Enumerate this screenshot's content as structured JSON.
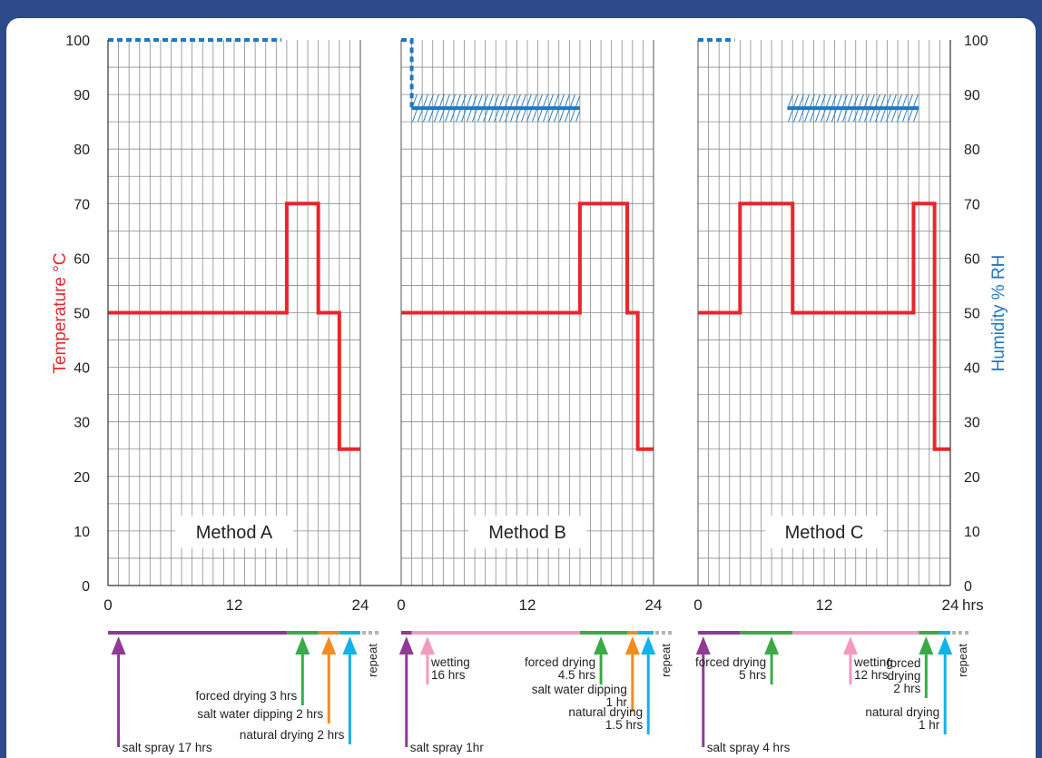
{
  "chart_data": {
    "type": "line",
    "y_left_label": "Temperature °C",
    "y_right_label": "Humidity % RH",
    "y_ticks": [
      0,
      10,
      20,
      30,
      40,
      50,
      60,
      70,
      80,
      90,
      100
    ],
    "ylim": [
      0,
      100
    ],
    "x_unit": "hrs",
    "x_ticks": [
      0,
      12,
      24
    ],
    "grid": true,
    "colors": {
      "temperature": "#e8262b",
      "humidity": "#1f78c1",
      "salt_spray": "#8e3a96",
      "wetting": "#f49ac1",
      "forced_drying": "#3aaa49",
      "salt_water_dipping": "#f28c1e",
      "natural_drying": "#11b3e8",
      "repeat": "#b3b3b3"
    },
    "panels": [
      {
        "title": "Method A",
        "temperature": [
          [
            0,
            50
          ],
          [
            17,
            50
          ],
          [
            17,
            70
          ],
          [
            20,
            70
          ],
          [
            20,
            50
          ],
          [
            22,
            50
          ],
          [
            22,
            25
          ],
          [
            24,
            25
          ]
        ],
        "humidity_dotted": [
          [
            0,
            100
          ],
          [
            16.5,
            100
          ]
        ],
        "humidity_hatched": null,
        "timeline": [
          {
            "phase": "salt_spray",
            "start": 0,
            "end": 17
          },
          {
            "phase": "forced_drying",
            "start": 17,
            "end": 20
          },
          {
            "phase": "salt_water_dipping",
            "start": 20,
            "end": 22
          },
          {
            "phase": "natural_drying",
            "start": 22,
            "end": 24
          }
        ],
        "annotations": [
          {
            "label": [
              "salt spray 17 hrs"
            ],
            "phase": "salt_spray",
            "x": 1
          },
          {
            "label": [
              "forced drying 3 hrs"
            ],
            "phase": "forced_drying",
            "x": 18.5
          },
          {
            "label": [
              "salt water dipping 2 hrs"
            ],
            "phase": "salt_water_dipping",
            "x": 21
          },
          {
            "label": [
              "natural drying 2 hrs"
            ],
            "phase": "natural_drying",
            "x": 23
          }
        ]
      },
      {
        "title": "Method B",
        "temperature": [
          [
            0,
            50
          ],
          [
            17,
            50
          ],
          [
            17,
            70
          ],
          [
            21.5,
            70
          ],
          [
            21.5,
            50
          ],
          [
            22.5,
            50
          ],
          [
            22.5,
            25
          ],
          [
            24,
            25
          ]
        ],
        "humidity_dotted": [
          [
            0,
            100
          ],
          [
            1,
            100
          ],
          [
            1,
            87.5
          ],
          [
            1.5,
            87.5
          ]
        ],
        "humidity_hatched": {
          "start": 1,
          "end": 17,
          "value": 87.5
        },
        "timeline": [
          {
            "phase": "salt_spray",
            "start": 0,
            "end": 1
          },
          {
            "phase": "wetting",
            "start": 1,
            "end": 17
          },
          {
            "phase": "forced_drying",
            "start": 17,
            "end": 21.5
          },
          {
            "phase": "salt_water_dipping",
            "start": 21.5,
            "end": 22.5
          },
          {
            "phase": "natural_drying",
            "start": 22.5,
            "end": 24
          }
        ],
        "annotations": [
          {
            "label": [
              "salt spray 1hr"
            ],
            "phase": "salt_spray",
            "x": 0.5
          },
          {
            "label": [
              "wetting",
              "16 hrs"
            ],
            "phase": "wetting",
            "x": 2.5
          },
          {
            "label": [
              "forced drying",
              "4.5 hrs"
            ],
            "phase": "forced_drying",
            "x": 19
          },
          {
            "label": [
              "salt water dipping",
              "1 hr"
            ],
            "phase": "salt_water_dipping",
            "x": 22
          },
          {
            "label": [
              "natural drying",
              "1.5 hrs"
            ],
            "phase": "natural_drying",
            "x": 23.5
          }
        ]
      },
      {
        "title": "Method C",
        "temperature": [
          [
            0,
            50
          ],
          [
            4,
            50
          ],
          [
            4,
            70
          ],
          [
            9,
            70
          ],
          [
            9,
            50
          ],
          [
            20.5,
            50
          ],
          [
            20.5,
            70
          ],
          [
            22.5,
            70
          ],
          [
            22.5,
            25
          ],
          [
            24,
            25
          ]
        ],
        "humidity_dotted": [
          [
            0,
            100
          ],
          [
            3.5,
            100
          ]
        ],
        "humidity_hatched": {
          "start": 8.5,
          "end": 21,
          "value": 87.5
        },
        "timeline": [
          {
            "phase": "salt_spray",
            "start": 0,
            "end": 4
          },
          {
            "phase": "forced_drying",
            "start": 4,
            "end": 9
          },
          {
            "phase": "wetting",
            "start": 9,
            "end": 21
          },
          {
            "phase": "forced_drying",
            "start": 21,
            "end": 23
          },
          {
            "phase": "natural_drying",
            "start": 23,
            "end": 24
          }
        ],
        "annotations": [
          {
            "label": [
              "salt spray 4 hrs"
            ],
            "phase": "salt_spray",
            "x": 0.5
          },
          {
            "label": [
              "forced drying",
              "5 hrs"
            ],
            "phase": "forced_drying",
            "x": 7
          },
          {
            "label": [
              "wetting",
              "12 hrs"
            ],
            "phase": "wetting",
            "x": 14.5
          },
          {
            "label": [
              "forced",
              "drying",
              "2 hrs"
            ],
            "phase": "forced_drying",
            "x": 21.7
          },
          {
            "label": [
              "natural drying",
              "1 hr"
            ],
            "phase": "natural_drying",
            "x": 23.5
          }
        ]
      }
    ],
    "repeat_label": "repeat"
  }
}
